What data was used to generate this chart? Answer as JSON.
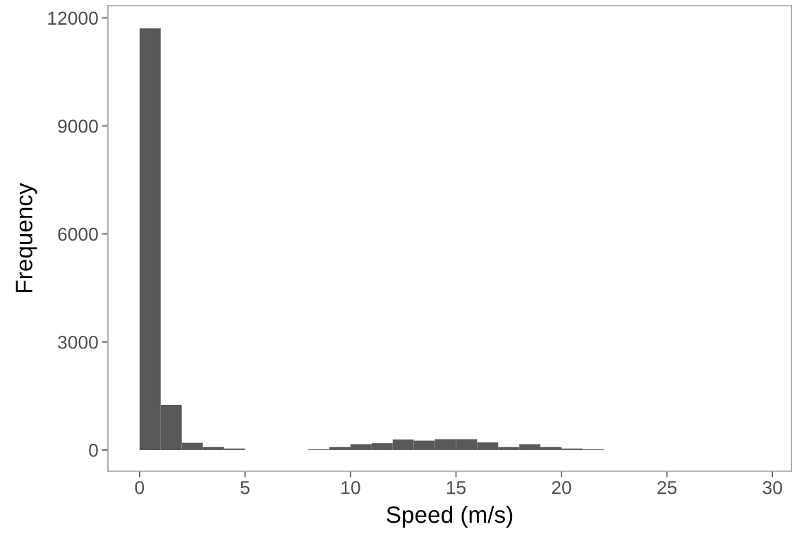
{
  "chart_data": {
    "type": "histogram",
    "xlabel": "Speed (m/s)",
    "ylabel": "Frequency",
    "bins": [
      0,
      1,
      2,
      3,
      4,
      5,
      6,
      7,
      8,
      9,
      10,
      11,
      12,
      13,
      14,
      15,
      16,
      17,
      18,
      19,
      20,
      21,
      22,
      23,
      24
    ],
    "values": [
      11710,
      1250,
      200,
      80,
      40,
      null,
      null,
      null,
      20,
      80,
      160,
      190,
      290,
      260,
      300,
      300,
      210,
      80,
      160,
      80,
      40,
      20,
      null,
      null
    ],
    "color": "#595959",
    "xlim": [
      -1.5,
      30.9
    ],
    "xticks": [
      0,
      5,
      10,
      15,
      20,
      25,
      30
    ],
    "ylim": [
      -590,
      12340
    ],
    "yticks": [
      0,
      3000,
      6000,
      9000,
      12000
    ],
    "grid": false,
    "legend": false
  }
}
